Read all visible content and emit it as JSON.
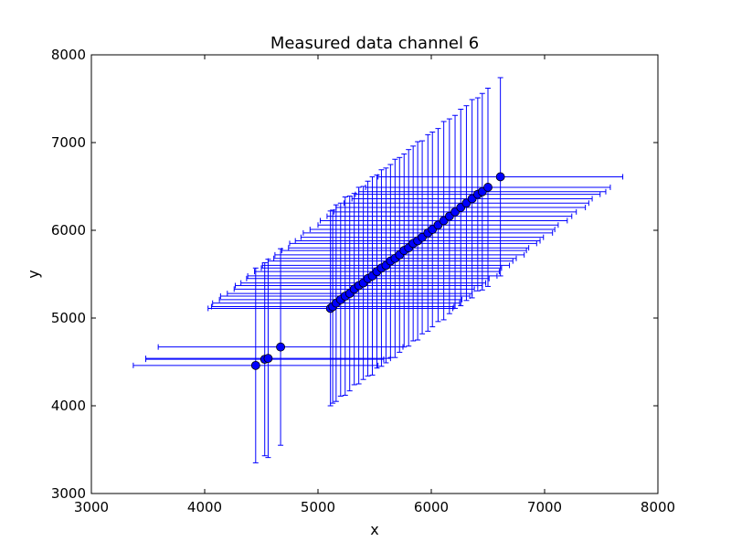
{
  "chart_data": {
    "type": "scatter",
    "title": "Measured data channel 6",
    "xlabel": "x",
    "ylabel": "y",
    "xlim": [
      3000,
      8000
    ],
    "ylim": [
      3000,
      8000
    ],
    "xticks": [
      3000,
      4000,
      5000,
      6000,
      7000,
      8000
    ],
    "yticks": [
      3000,
      4000,
      5000,
      6000,
      7000,
      8000
    ],
    "grid": false,
    "legend": false,
    "series": [
      {
        "color": "#0000ff",
        "marker": "circle",
        "error_bars": true,
        "points": [
          {
            "x": 4450,
            "y": 4460,
            "xerr": 1080,
            "yerr": 1110
          },
          {
            "x": 4530,
            "y": 4530,
            "xerr": 1050,
            "yerr": 1100
          },
          {
            "x": 4560,
            "y": 4540,
            "xerr": 1080,
            "yerr": 1130
          },
          {
            "x": 4670,
            "y": 4670,
            "xerr": 1080,
            "yerr": 1120
          },
          {
            "x": 5110,
            "y": 5110,
            "xerr": 1080,
            "yerr": 1110
          },
          {
            "x": 5130,
            "y": 5130,
            "xerr": 1070,
            "yerr": 1100
          },
          {
            "x": 5160,
            "y": 5170,
            "xerr": 1090,
            "yerr": 1120
          },
          {
            "x": 5200,
            "y": 5210,
            "xerr": 1070,
            "yerr": 1100
          },
          {
            "x": 5240,
            "y": 5250,
            "xerr": 1100,
            "yerr": 1130
          },
          {
            "x": 5280,
            "y": 5280,
            "xerr": 1080,
            "yerr": 1110
          },
          {
            "x": 5320,
            "y": 5330,
            "xerr": 1060,
            "yerr": 1090
          },
          {
            "x": 5360,
            "y": 5370,
            "xerr": 1090,
            "yerr": 1120
          },
          {
            "x": 5400,
            "y": 5400,
            "xerr": 1080,
            "yerr": 1100
          },
          {
            "x": 5440,
            "y": 5450,
            "xerr": 1070,
            "yerr": 1110
          },
          {
            "x": 5480,
            "y": 5480,
            "xerr": 1100,
            "yerr": 1130
          },
          {
            "x": 5520,
            "y": 5530,
            "xerr": 1080,
            "yerr": 1100
          },
          {
            "x": 5560,
            "y": 5570,
            "xerr": 1060,
            "yerr": 1120
          },
          {
            "x": 5600,
            "y": 5600,
            "xerr": 1090,
            "yerr": 1110
          },
          {
            "x": 5640,
            "y": 5650,
            "xerr": 1080,
            "yerr": 1100
          },
          {
            "x": 5680,
            "y": 5680,
            "xerr": 1070,
            "yerr": 1130
          },
          {
            "x": 5720,
            "y": 5720,
            "xerr": 1100,
            "yerr": 1110
          },
          {
            "x": 5760,
            "y": 5770,
            "xerr": 1080,
            "yerr": 1100
          },
          {
            "x": 5800,
            "y": 5800,
            "xerr": 1060,
            "yerr": 1120
          },
          {
            "x": 5840,
            "y": 5850,
            "xerr": 1090,
            "yerr": 1110
          },
          {
            "x": 5880,
            "y": 5880,
            "xerr": 1080,
            "yerr": 1130
          },
          {
            "x": 5920,
            "y": 5920,
            "xerr": 1070,
            "yerr": 1100
          },
          {
            "x": 5970,
            "y": 5970,
            "xerr": 1100,
            "yerr": 1120
          },
          {
            "x": 6010,
            "y": 6010,
            "xerr": 1080,
            "yerr": 1110
          },
          {
            "x": 6060,
            "y": 6060,
            "xerr": 1060,
            "yerr": 1100
          },
          {
            "x": 6110,
            "y": 6110,
            "xerr": 1090,
            "yerr": 1130
          },
          {
            "x": 6160,
            "y": 6160,
            "xerr": 1080,
            "yerr": 1110
          },
          {
            "x": 6210,
            "y": 6210,
            "xerr": 1070,
            "yerr": 1100
          },
          {
            "x": 6260,
            "y": 6260,
            "xerr": 1100,
            "yerr": 1120
          },
          {
            "x": 6310,
            "y": 6310,
            "xerr": 1080,
            "yerr": 1110
          },
          {
            "x": 6360,
            "y": 6360,
            "xerr": 1060,
            "yerr": 1130
          },
          {
            "x": 6410,
            "y": 6410,
            "xerr": 1080,
            "yerr": 1100
          },
          {
            "x": 6450,
            "y": 6440,
            "xerr": 1090,
            "yerr": 1120
          },
          {
            "x": 6500,
            "y": 6490,
            "xerr": 1080,
            "yerr": 1130
          },
          {
            "x": 6610,
            "y": 6610,
            "xerr": 1080,
            "yerr": 1130
          }
        ]
      }
    ]
  }
}
